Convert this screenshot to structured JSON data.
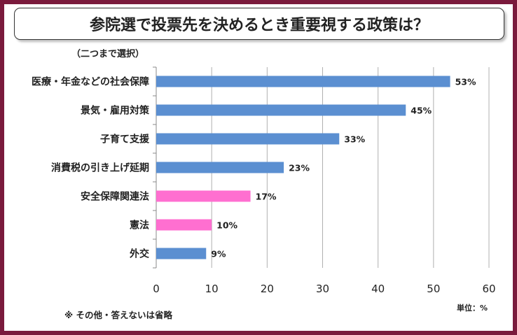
{
  "title": "参院選で投票先を決めるとき重要視する政策は？",
  "subtitle": "（二つまで選択）",
  "footnote": "※ その他・答えないは省略",
  "unit": "単位：%",
  "colors": {
    "blue": "#5b8fd1",
    "pink": "#ff6fd0",
    "frame": "#7a1a3c",
    "grid": "#b0b0b0"
  },
  "chart_data": {
    "type": "bar",
    "orientation": "horizontal",
    "categories": [
      "医療・年金などの社会保障",
      "景気・雇用対策",
      "子育て支援",
      "消費税の引き上げ延期",
      "安全保障関連法",
      "憲法",
      "外交"
    ],
    "values": [
      53,
      45,
      33,
      23,
      17,
      10,
      9
    ],
    "value_labels": [
      "53%",
      "45%",
      "33%",
      "23%",
      "17%",
      "10%",
      "9%"
    ],
    "bar_colors": [
      "blue",
      "blue",
      "blue",
      "blue",
      "pink",
      "pink",
      "blue"
    ],
    "xlim": [
      0,
      60
    ],
    "xticks": [
      0,
      10,
      20,
      30,
      40,
      50,
      60
    ],
    "grid": "vertical",
    "legend": "none"
  }
}
